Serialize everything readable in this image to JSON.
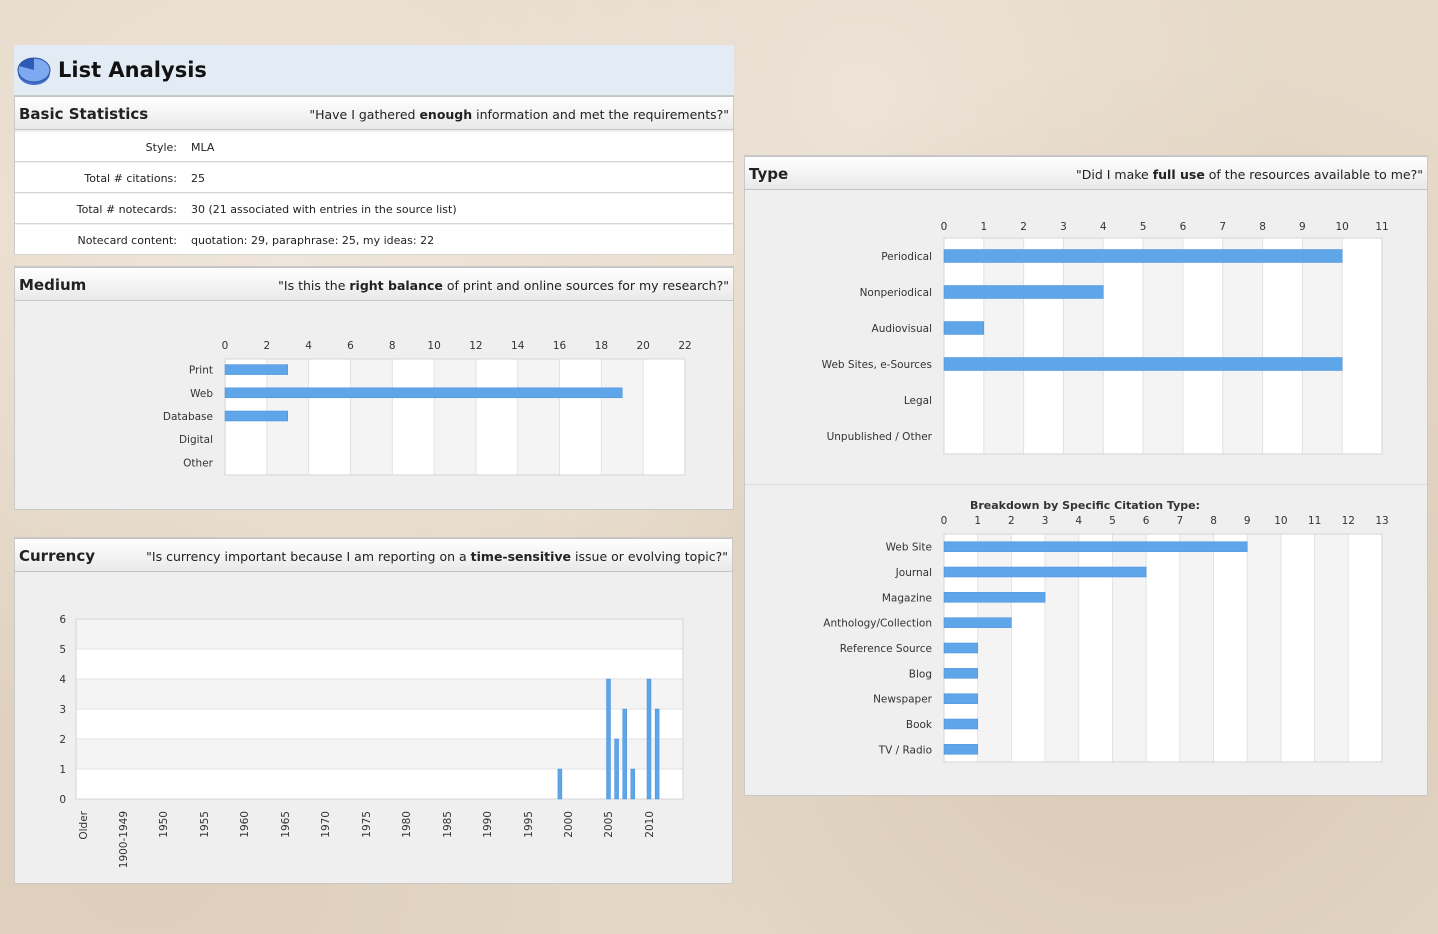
{
  "title": "List Analysis",
  "basic": {
    "title": "Basic Statistics",
    "q_pre": "\"Have I gathered ",
    "q_bold": "enough",
    "q_post": " information and met the requirements?\"",
    "rows": [
      {
        "label": "Style:",
        "value": "MLA"
      },
      {
        "label": "Total # citations:",
        "value": "25"
      },
      {
        "label": "Total # notecards:",
        "value": "30 (21 associated with entries in the source list)"
      },
      {
        "label": "Notecard content:",
        "value": "quotation: 29, paraphrase: 25, my ideas: 22"
      }
    ]
  },
  "medium": {
    "title": "Medium",
    "q_pre": "\"Is this the ",
    "q_bold": "right balance",
    "q_post": " of print and online sources for my research?\""
  },
  "currency": {
    "title": "Currency",
    "q_pre": "\"Is currency important because I am reporting on a ",
    "q_bold": "time-sensitive",
    "q_post": " issue or evolving topic?\""
  },
  "type": {
    "title": "Type",
    "q_pre": "\"Did I make ",
    "q_bold": "full use",
    "q_post": " of the resources available to me?\""
  },
  "colors": {
    "bar": "#5ea5ea",
    "bar_stroke": "#4a90d9"
  },
  "chart_data": [
    {
      "id": "medium",
      "type": "bar",
      "orientation": "horizontal",
      "categories": [
        "Print",
        "Web",
        "Database",
        "Digital",
        "Other"
      ],
      "values": [
        3,
        19,
        3,
        0,
        0
      ],
      "xlim": [
        0,
        22
      ],
      "xticks": [
        0,
        2,
        4,
        6,
        8,
        10,
        12,
        14,
        16,
        18,
        20,
        22
      ],
      "grid": true
    },
    {
      "id": "currency",
      "type": "bar",
      "orientation": "vertical",
      "category_labels": [
        "Older",
        "1900-1949",
        "1950",
        "1955",
        "1960",
        "1965",
        "1970",
        "1975",
        "1980",
        "1985",
        "1990",
        "1995",
        "2000",
        "2005",
        "2010"
      ],
      "x": [
        "1999",
        "2005",
        "2006",
        "2007",
        "2008",
        "2010",
        "2011"
      ],
      "values": [
        1,
        4,
        2,
        3,
        1,
        4,
        3
      ],
      "ylim": [
        0,
        6
      ],
      "yticks": [
        0,
        1,
        2,
        3,
        4,
        5,
        6
      ],
      "grid": true
    },
    {
      "id": "type",
      "type": "bar",
      "orientation": "horizontal",
      "categories": [
        "Periodical",
        "Nonperiodical",
        "Audiovisual",
        "Web Sites, e-Sources",
        "Legal",
        "Unpublished / Other"
      ],
      "values": [
        10,
        4,
        1,
        10,
        0,
        0
      ],
      "xlim": [
        0,
        11
      ],
      "xticks": [
        0,
        1,
        2,
        3,
        4,
        5,
        6,
        7,
        8,
        9,
        10,
        11
      ],
      "grid": true
    },
    {
      "id": "breakdown",
      "type": "bar",
      "orientation": "horizontal",
      "title": "Breakdown by Specific Citation Type:",
      "categories": [
        "Web Site",
        "Journal",
        "Magazine",
        "Anthology/Collection",
        "Reference Source",
        "Blog",
        "Newspaper",
        "Book",
        "TV / Radio"
      ],
      "values": [
        9,
        6,
        3,
        2,
        1,
        1,
        1,
        1,
        1
      ],
      "xlim": [
        0,
        13
      ],
      "xticks": [
        0,
        1,
        2,
        3,
        4,
        5,
        6,
        7,
        8,
        9,
        10,
        11,
        12,
        13
      ],
      "grid": true
    }
  ]
}
